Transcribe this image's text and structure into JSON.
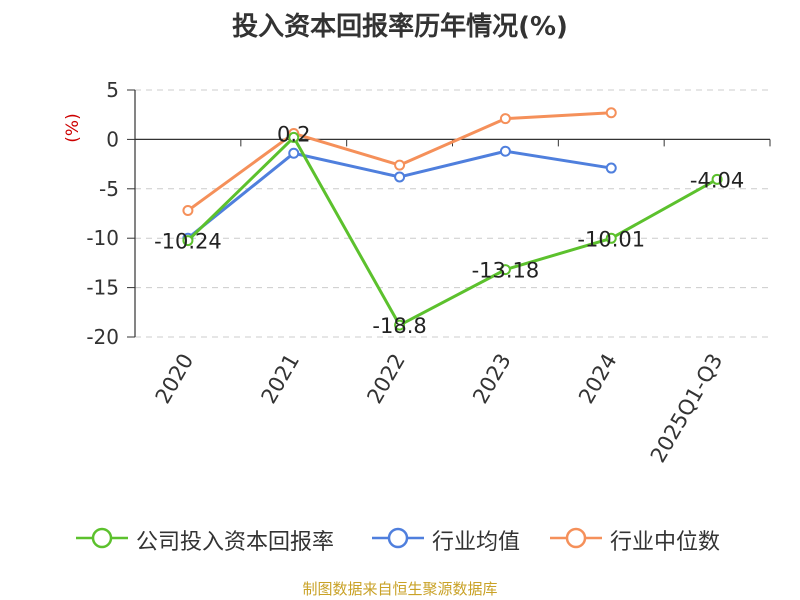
{
  "title": "投入资本回报率历年情况(%)",
  "source_note": "制图数据来自恒生聚源数据库",
  "chart_data": {
    "type": "line",
    "title": "投入资本回报率历年情况(%)",
    "ylabel": "(%)",
    "xlabel": "",
    "categories": [
      "2020",
      "2021",
      "2022",
      "2023",
      "2024",
      "2025Q1-Q3"
    ],
    "ylim": [
      -20,
      5
    ],
    "yticks": [
      5,
      0,
      -5,
      -10,
      -15,
      -20
    ],
    "grid": true,
    "legend_position": "bottom",
    "series": [
      {
        "name": "公司投入资本回报率",
        "color": "#5cc12d",
        "values": [
          -10.24,
          0.2,
          -18.8,
          -13.18,
          -10.01,
          -4.04
        ],
        "labels": [
          "-10.24",
          "0.2",
          "-18.8",
          "-13.18",
          "-10.01",
          "-4.04"
        ]
      },
      {
        "name": "行业均值",
        "color": "#4f7fdd",
        "values": [
          -10.0,
          -1.4,
          -3.8,
          -1.2,
          -2.9,
          null
        ]
      },
      {
        "name": "行业中位数",
        "color": "#f5905a",
        "values": [
          -7.2,
          0.6,
          -2.6,
          2.1,
          2.7,
          null
        ]
      }
    ]
  }
}
